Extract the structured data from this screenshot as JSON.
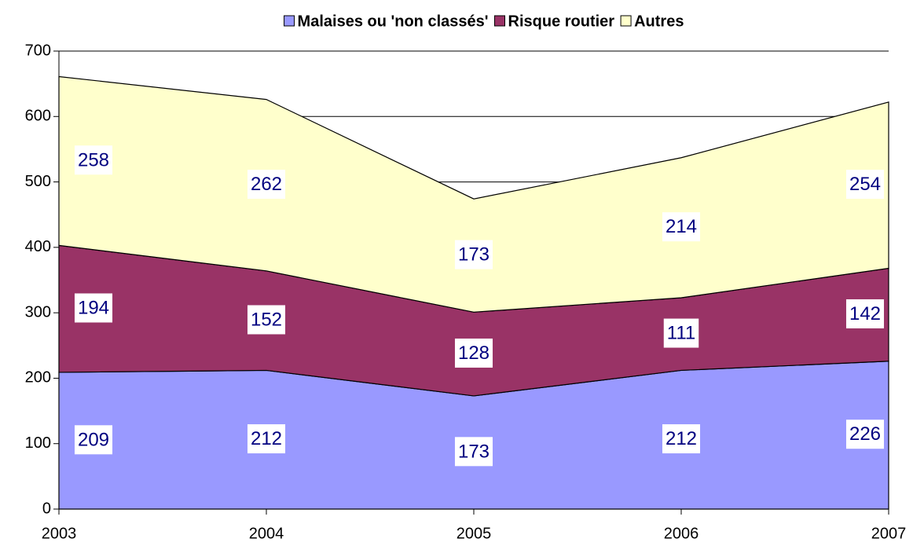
{
  "chart_data": {
    "type": "stacked-area",
    "x": [
      2003,
      2004,
      2005,
      2006,
      2007
    ],
    "series": [
      {
        "name": "Malaises ou 'non classés'",
        "color": "#9999ff",
        "values": [
          209,
          212,
          173,
          212,
          226
        ]
      },
      {
        "name": "Risque routier",
        "color": "#993366",
        "values": [
          194,
          152,
          128,
          111,
          142
        ]
      },
      {
        "name": "Autres",
        "color": "#ffffcc",
        "values": [
          258,
          262,
          173,
          214,
          254
        ]
      }
    ],
    "xlim": [
      2003,
      2007
    ],
    "xticks": [
      2003,
      2004,
      2005,
      2006,
      2007
    ],
    "ylim": [
      0,
      700
    ],
    "yticks": [
      0,
      100,
      200,
      300,
      400,
      500,
      600,
      700
    ],
    "grid": true,
    "legend": "top"
  }
}
